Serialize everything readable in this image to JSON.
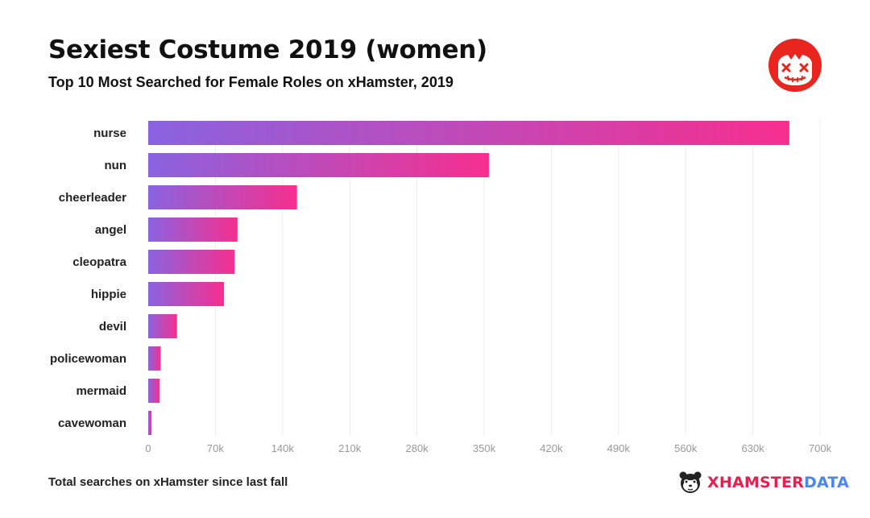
{
  "header": {
    "title": "Sexiest Costume 2019 (women)",
    "subtitle": "Top 10 Most Searched for Female Roles on xHamster, 2019"
  },
  "footer": {
    "note": "Total searches on xHamster since last fall",
    "brand_main": "XHAMSTER",
    "brand_accent": "DATA"
  },
  "icons": {
    "badge": "xhamster-face-icon",
    "brand": "hamster-icon"
  },
  "colors": {
    "bar_start": "#8a63e0",
    "bar_end": "#f72f8f",
    "badge": "#e8251e",
    "brand_red": "#e81e4e",
    "brand_blue": "#4e86f0"
  },
  "chart_data": {
    "type": "bar",
    "orientation": "horizontal",
    "categories": [
      "nurse",
      "nun",
      "cheerleader",
      "angel",
      "cleopatra",
      "hippie",
      "devil",
      "policewoman",
      "mermaid",
      "cavewoman"
    ],
    "values": [
      668000,
      355000,
      155000,
      93000,
      90000,
      79000,
      30000,
      13000,
      12000,
      3500
    ],
    "x_ticks": [
      "0",
      "70k",
      "140k",
      "210k",
      "280k",
      "350k",
      "420k",
      "490k",
      "560k",
      "630k",
      "700k"
    ],
    "xlim": [
      0,
      700000
    ],
    "grid": true
  }
}
